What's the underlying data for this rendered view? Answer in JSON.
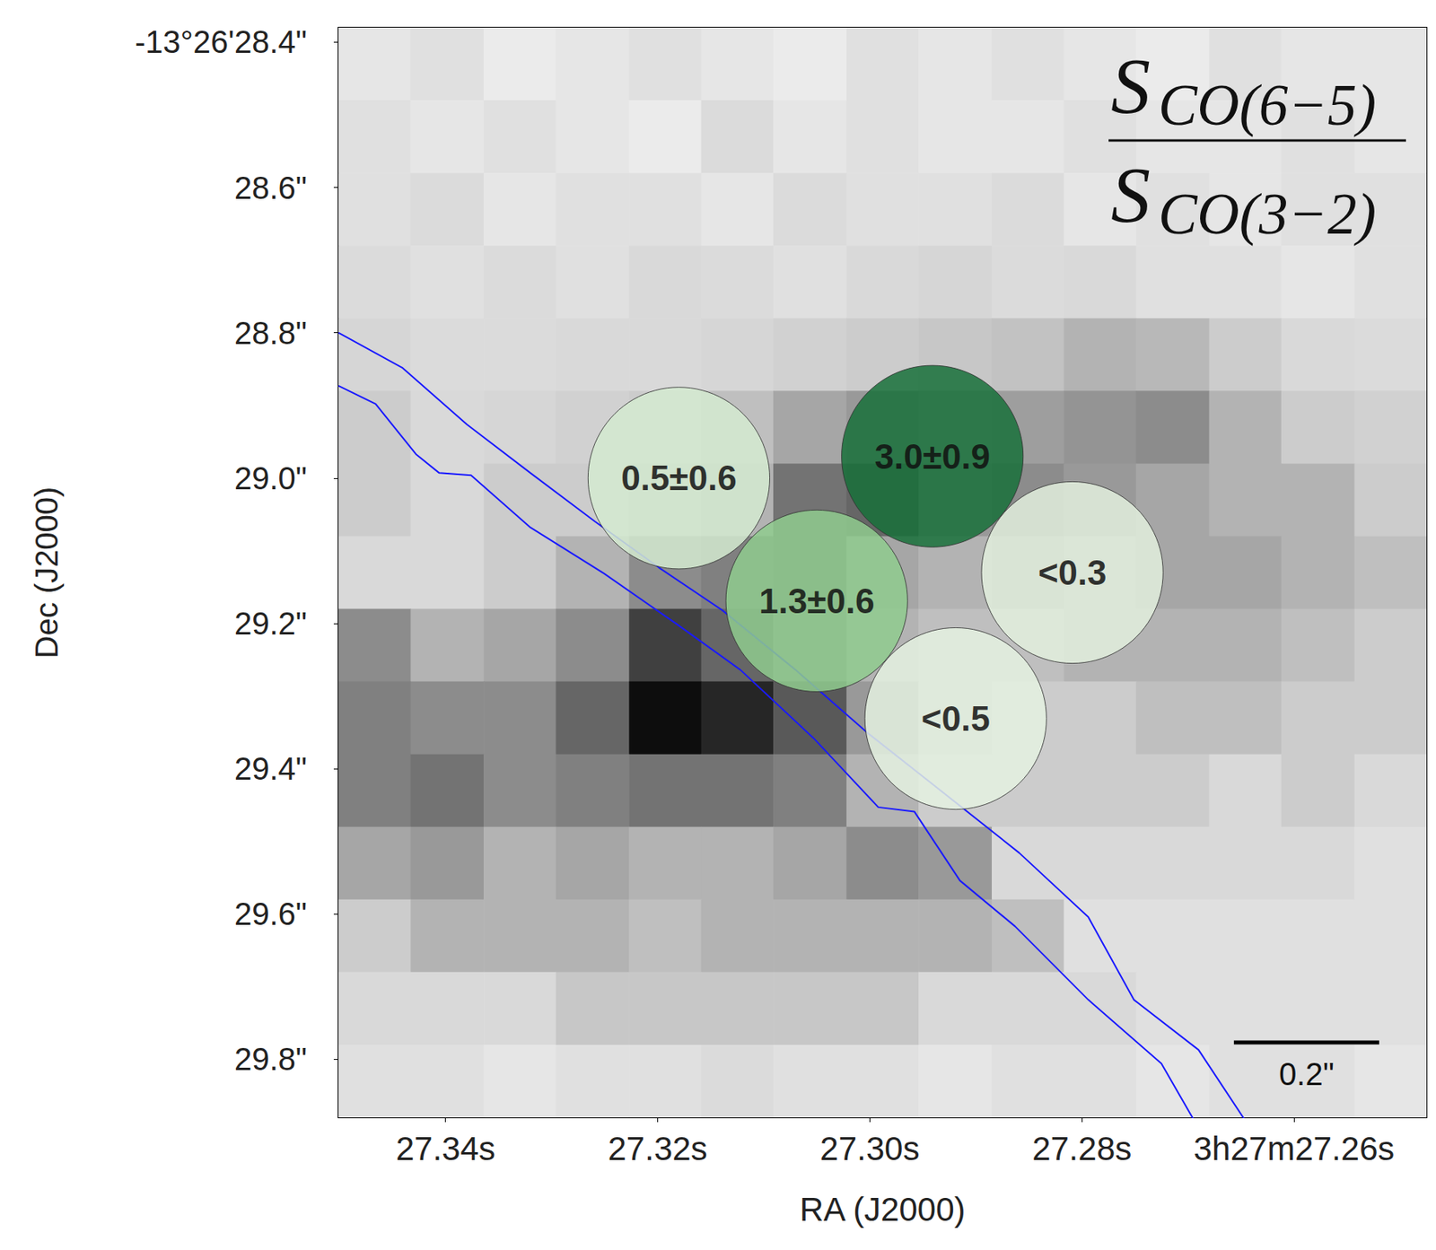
{
  "chart_data": {
    "type": "image",
    "title": {
      "numerator": {
        "text": "S",
        "subscript": "CO(6−5)"
      },
      "denominator": {
        "text": "S",
        "subscript": "CO(3−2)"
      }
    },
    "x_label": "RA (J2000)",
    "y_label": "Dec (J2000)",
    "xlim": [
      27.3501,
      27.2475
    ],
    "xticks": [
      {
        "value": 27.34,
        "label": "27.34s"
      },
      {
        "value": 27.32,
        "label": "27.32s"
      },
      {
        "value": 27.3,
        "label": "27.30s"
      },
      {
        "value": 27.28,
        "label": "27.28s"
      },
      {
        "value": 27.26,
        "label": "3h27m27.26s"
      }
    ],
    "ylim": [
      29.88,
      28.38
    ],
    "yticks": [
      {
        "value": 28.4,
        "label": "-13°26'28.4\""
      },
      {
        "value": 28.6,
        "label": "28.6\""
      },
      {
        "value": 28.8,
        "label": "28.8\""
      },
      {
        "value": 29.0,
        "label": "29.0\""
      },
      {
        "value": 29.2,
        "label": "29.2\""
      },
      {
        "value": 29.4,
        "label": "29.4\""
      },
      {
        "value": 29.6,
        "label": "29.6\""
      },
      {
        "value": 29.8,
        "label": "29.8\""
      }
    ],
    "grid": false,
    "image": {
      "ra_edges": [
        27.3501,
        27.3433,
        27.3364,
        27.3296,
        27.3227,
        27.3159,
        27.3091,
        27.3022,
        27.2954,
        27.2885,
        27.2817,
        27.2749,
        27.268,
        27.2612,
        27.2543,
        27.2475
      ],
      "dec_edges": [
        28.38,
        28.48,
        28.58,
        28.68,
        28.78,
        28.88,
        28.98,
        29.08,
        29.18,
        29.28,
        29.38,
        29.48,
        29.58,
        29.68,
        29.78,
        29.88
      ],
      "values": [
        [
          0.1,
          0.12,
          0.08,
          0.1,
          0.12,
          0.1,
          0.08,
          0.12,
          0.1,
          0.12,
          0.1,
          0.08,
          0.12,
          0.1,
          0.1
        ],
        [
          0.12,
          0.1,
          0.12,
          0.1,
          0.08,
          0.14,
          0.1,
          0.12,
          0.1,
          0.1,
          0.12,
          0.1,
          0.1,
          0.12,
          0.1
        ],
        [
          0.12,
          0.14,
          0.1,
          0.12,
          0.12,
          0.1,
          0.14,
          0.12,
          0.12,
          0.14,
          0.1,
          0.12,
          0.1,
          0.12,
          0.12
        ],
        [
          0.14,
          0.12,
          0.14,
          0.12,
          0.15,
          0.14,
          0.12,
          0.15,
          0.16,
          0.14,
          0.15,
          0.12,
          0.12,
          0.1,
          0.12
        ],
        [
          0.16,
          0.14,
          0.14,
          0.15,
          0.15,
          0.16,
          0.18,
          0.2,
          0.22,
          0.24,
          0.3,
          0.28,
          0.2,
          0.15,
          0.14
        ],
        [
          0.2,
          0.15,
          0.16,
          0.18,
          0.2,
          0.25,
          0.35,
          0.4,
          0.35,
          0.38,
          0.42,
          0.45,
          0.3,
          0.2,
          0.18
        ],
        [
          0.2,
          0.15,
          0.2,
          0.2,
          0.25,
          0.3,
          0.55,
          0.6,
          0.4,
          0.45,
          0.4,
          0.35,
          0.3,
          0.3,
          0.2
        ],
        [
          0.15,
          0.15,
          0.2,
          0.3,
          0.45,
          0.5,
          0.55,
          0.35,
          0.3,
          0.35,
          0.3,
          0.35,
          0.35,
          0.3,
          0.25
        ],
        [
          0.45,
          0.3,
          0.35,
          0.45,
          0.75,
          0.6,
          0.45,
          0.3,
          0.25,
          0.25,
          0.3,
          0.3,
          0.3,
          0.25,
          0.2
        ],
        [
          0.5,
          0.45,
          0.45,
          0.6,
          0.95,
          0.85,
          0.65,
          0.4,
          0.25,
          0.2,
          0.2,
          0.25,
          0.25,
          0.2,
          0.2
        ],
        [
          0.5,
          0.55,
          0.45,
          0.5,
          0.55,
          0.55,
          0.5,
          0.3,
          0.2,
          0.2,
          0.2,
          0.2,
          0.15,
          0.2,
          0.15
        ],
        [
          0.35,
          0.4,
          0.3,
          0.35,
          0.3,
          0.3,
          0.35,
          0.45,
          0.4,
          0.15,
          0.15,
          0.15,
          0.15,
          0.15,
          0.12
        ],
        [
          0.2,
          0.3,
          0.3,
          0.3,
          0.25,
          0.3,
          0.3,
          0.3,
          0.3,
          0.25,
          0.12,
          0.12,
          0.12,
          0.12,
          0.12
        ],
        [
          0.15,
          0.15,
          0.15,
          0.22,
          0.22,
          0.22,
          0.22,
          0.22,
          0.15,
          0.15,
          0.15,
          0.12,
          0.12,
          0.12,
          0.12
        ],
        [
          0.12,
          0.12,
          0.1,
          0.12,
          0.12,
          0.14,
          0.12,
          0.12,
          0.1,
          0.12,
          0.12,
          0.1,
          0.12,
          0.12,
          0.1
        ]
      ]
    },
    "contours": [
      {
        "color": "#1a1aff",
        "ra": [
          27.3501,
          27.3441,
          27.338,
          27.332,
          27.3259,
          27.3199,
          27.3139,
          27.307,
          27.3001,
          27.2941,
          27.2859,
          27.2794,
          27.2751,
          27.269,
          27.2647
        ],
        "dec": [
          28.8,
          28.848,
          28.926,
          28.993,
          29.06,
          29.123,
          29.182,
          29.264,
          29.352,
          29.421,
          29.516,
          29.604,
          29.718,
          29.787,
          29.882
        ]
      },
      {
        "color": "#1a1aff",
        "ra": [
          27.3501,
          27.3466,
          27.3428,
          27.3406,
          27.3376,
          27.332,
          27.3251,
          27.3182,
          27.3122,
          27.3053,
          27.2992,
          27.2958,
          27.2915,
          27.2863,
          27.2794,
          27.2725,
          27.2695
        ],
        "dec": [
          28.873,
          28.898,
          28.967,
          28.993,
          28.996,
          29.068,
          29.131,
          29.201,
          29.264,
          29.358,
          29.453,
          29.459,
          29.554,
          29.617,
          29.718,
          29.806,
          29.882
        ]
      }
    ],
    "regions": {
      "ra": [
        27.318,
        27.2941,
        27.305,
        27.2809,
        27.2919
      ],
      "dec": [
        29.0,
        28.97,
        29.169,
        29.13,
        29.331
      ],
      "diameter": 0.25,
      "labels": [
        "0.5±0.6",
        "3.0±0.9",
        "1.3±0.6",
        "<0.3",
        "<0.5"
      ],
      "colors": [
        "#d3ead0",
        "#17703a",
        "#8fcb8e",
        "#e2efdd",
        "#e4f1e0"
      ]
    },
    "scale_bar": {
      "length": 0.2,
      "label": "0.2\""
    }
  }
}
